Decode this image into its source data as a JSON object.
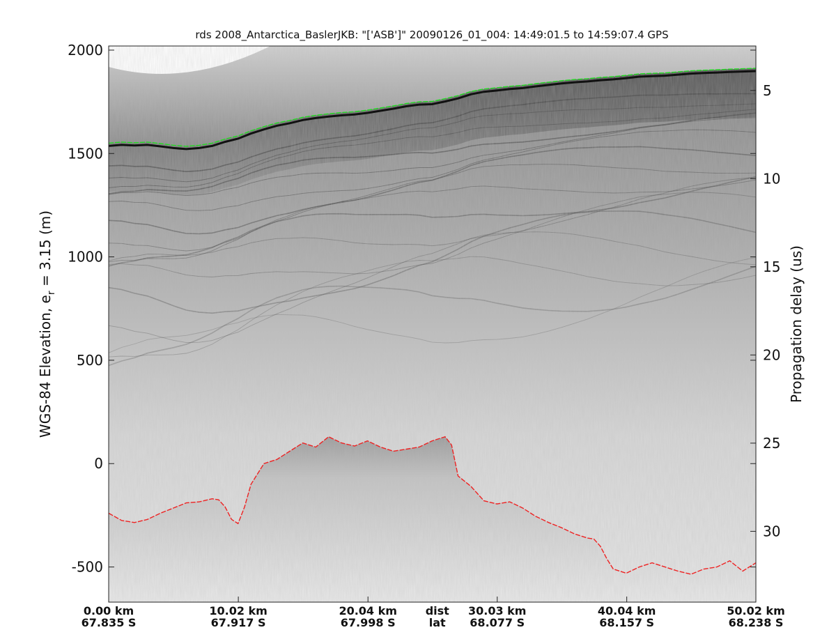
{
  "chart_data": {
    "type": "line",
    "title": "rds 2008_Antarctica_BaslerJKB: \"['ASB']\"  20090126_01_004: 14:49:01.5 to 14:59:07.4 GPS",
    "ylabel_main": "WGS-84 Elevation, e",
    "ylabel_sub": "r",
    "ylabel_tail": " = 3.15 (m)",
    "y2label": "Propagation delay (us)",
    "ylim": [
      -670,
      2020
    ],
    "y_ticks": [
      2000,
      1500,
      1000,
      500,
      0,
      -500
    ],
    "y_tick_labels": [
      "2000",
      "1500",
      "1000",
      "500",
      "0",
      "-500"
    ],
    "y2_ticks": [
      5,
      10,
      15,
      20,
      25,
      30
    ],
    "y2_tick_labels": [
      "5",
      "10",
      "15",
      "20",
      "25",
      "30"
    ],
    "xlim_km": [
      0,
      50.02
    ],
    "x_ticks": [
      {
        "km": 0.0,
        "label": "0.00 km",
        "lat": "67.835 S"
      },
      {
        "km": 10.02,
        "label": "10.02 km",
        "lat": "67.917 S"
      },
      {
        "km": 20.04,
        "label": "20.04 km",
        "lat": "67.998 S"
      },
      {
        "km": 30.03,
        "label": "30.03 km",
        "lat": "68.077 S"
      },
      {
        "km": 40.04,
        "label": "40.04 km",
        "lat": "68.157 S"
      },
      {
        "km": 50.02,
        "label": "50.02 km",
        "lat": "68.238 S"
      }
    ],
    "x_axis_labels": {
      "dist": "dist",
      "lat": "lat",
      "km_position": 25.4
    },
    "grid": false,
    "colormap": "gray",
    "series": [
      {
        "name": "",
        "color": "#22dd22",
        "style": "dashed",
        "x": [
          0,
          1,
          2,
          3,
          4,
          5,
          6,
          7,
          8,
          9,
          10,
          11,
          12,
          13,
          14,
          15,
          16,
          17,
          18,
          19,
          20,
          21,
          22,
          23,
          24,
          25,
          26,
          27,
          28,
          29,
          30,
          31,
          32,
          33,
          34,
          35,
          36,
          37,
          38,
          39,
          40,
          41,
          42,
          43,
          44,
          45,
          46,
          47,
          48,
          49,
          50.02
        ],
        "y": [
          1550,
          1555,
          1552,
          1555,
          1548,
          1540,
          1535,
          1540,
          1550,
          1570,
          1585,
          1610,
          1630,
          1648,
          1660,
          1675,
          1685,
          1692,
          1698,
          1702,
          1710,
          1720,
          1730,
          1742,
          1750,
          1752,
          1765,
          1780,
          1800,
          1812,
          1818,
          1825,
          1830,
          1838,
          1845,
          1852,
          1858,
          1862,
          1868,
          1872,
          1878,
          1885,
          1888,
          1890,
          1895,
          1900,
          1903,
          1905,
          1908,
          1910,
          1912
        ]
      },
      {
        "name": "",
        "color": "#ee2222",
        "style": "dashed",
        "x": [
          0,
          1,
          2,
          3,
          4,
          5,
          6,
          7,
          8,
          8.5,
          9,
          9.5,
          10,
          10.5,
          11,
          12,
          13,
          14,
          15,
          16,
          17,
          18,
          19,
          20,
          21,
          22,
          23,
          24,
          25,
          26,
          26.5,
          27,
          28,
          29,
          30,
          31,
          32,
          33,
          34,
          35,
          36,
          37,
          37.5,
          38,
          38.5,
          39,
          40,
          41,
          42,
          43,
          44,
          45,
          46,
          47,
          48,
          49,
          50.02
        ],
        "y": [
          -240,
          -275,
          -285,
          -270,
          -240,
          -215,
          -190,
          -185,
          -170,
          -175,
          -210,
          -270,
          -290,
          -210,
          -100,
          0,
          20,
          60,
          100,
          80,
          130,
          100,
          85,
          110,
          80,
          60,
          70,
          80,
          110,
          130,
          90,
          -60,
          -110,
          -180,
          -195,
          -185,
          -215,
          -255,
          -285,
          -310,
          -340,
          -360,
          -365,
          -400,
          -460,
          -510,
          -530,
          -500,
          -480,
          -500,
          -520,
          -535,
          -510,
          -500,
          -470,
          -520,
          -480
        ]
      }
    ]
  }
}
